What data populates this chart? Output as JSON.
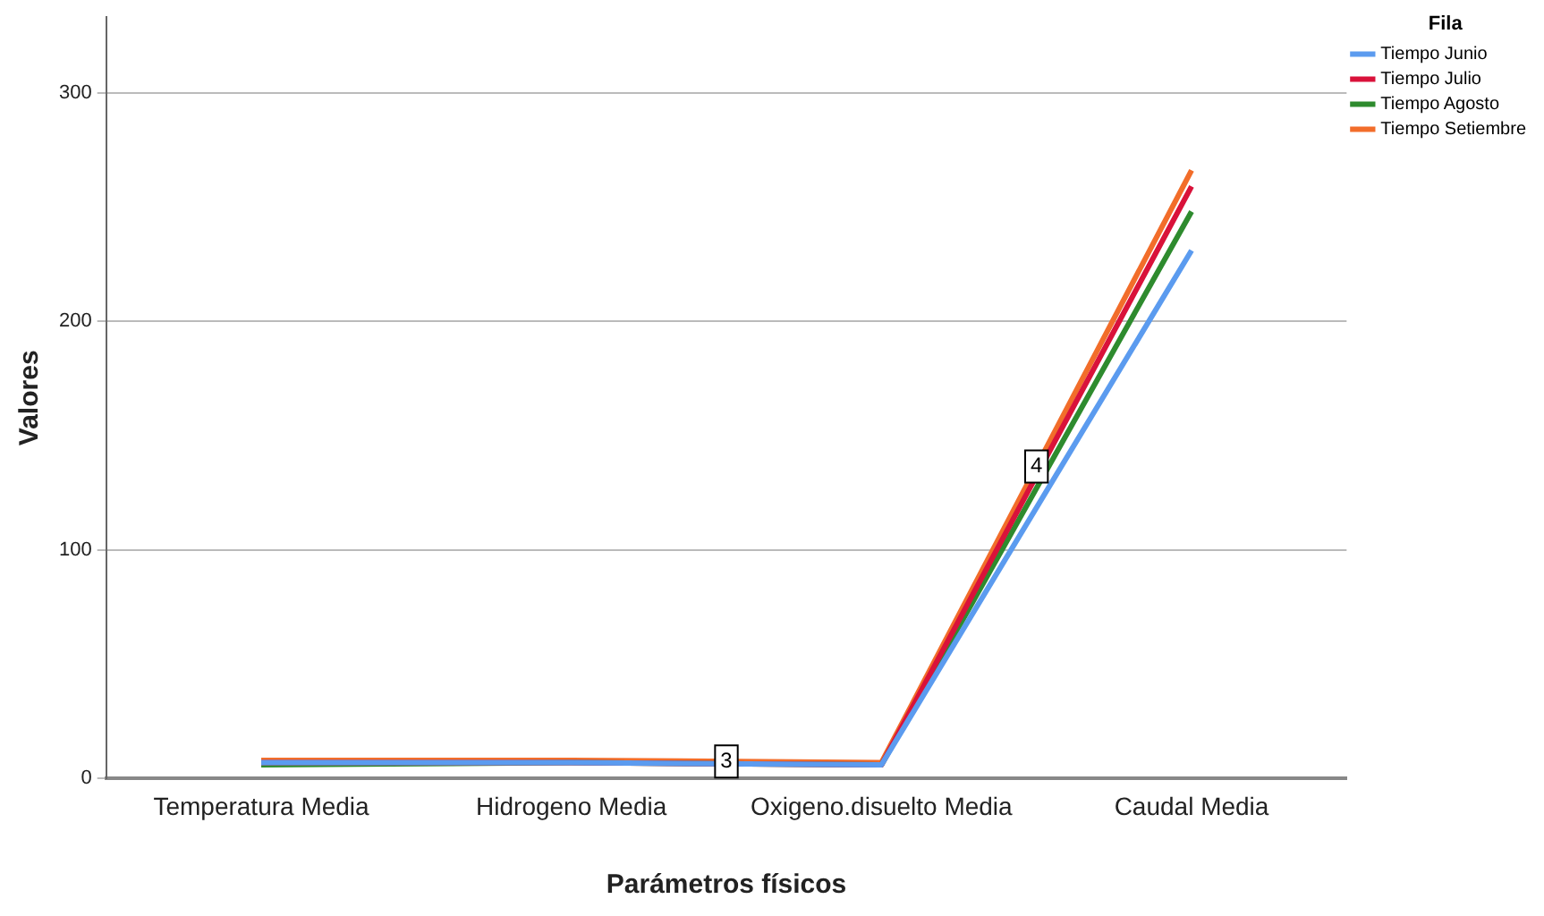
{
  "chart_data": {
    "type": "line",
    "xlabel": "Parámetros físicos",
    "ylabel": "Valores",
    "legend_title": "Fila",
    "legend": "top right",
    "grid": "y",
    "marker": "none",
    "line_style": "solid",
    "categories": [
      "Temperatura Media",
      "Hidrogeno Media",
      "Oxigeno.disuelto Media",
      "Caudal Media"
    ],
    "ylim": [
      0,
      333
    ],
    "yticks": [
      0,
      100,
      200,
      300
    ],
    "series": [
      {
        "name": "Tiempo Junio",
        "color": "#5b9bef",
        "values": [
          7,
          7,
          6,
          231
        ]
      },
      {
        "name": "Tiempo Julio",
        "color": "#d9123a",
        "values": [
          7,
          7,
          6,
          259
        ]
      },
      {
        "name": "Tiempo Agosto",
        "color": "#2e8b2e",
        "values": [
          6,
          7,
          6,
          248
        ]
      },
      {
        "name": "Tiempo Setiembre",
        "color": "#f26d2a",
        "values": [
          8,
          8,
          7,
          266
        ]
      }
    ],
    "annotations": [
      "3",
      "4"
    ]
  }
}
